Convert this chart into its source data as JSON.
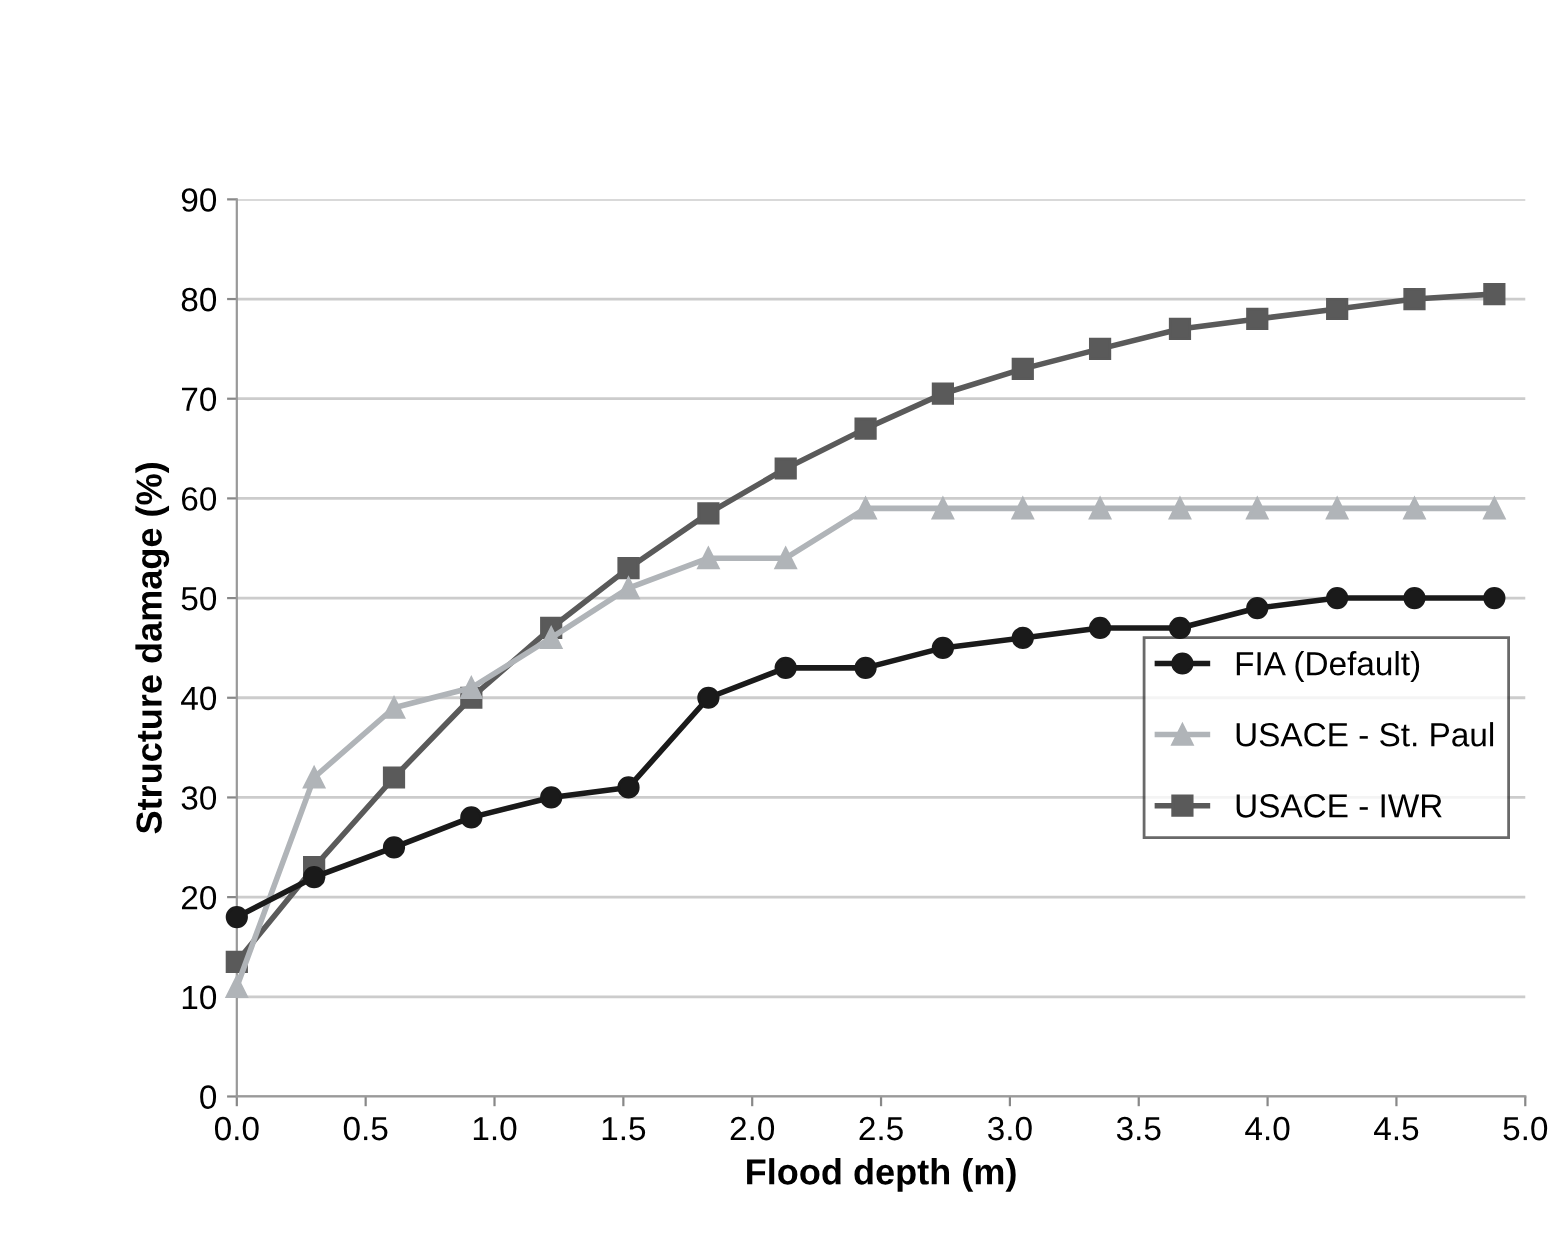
{
  "chart_data": {
    "type": "line",
    "xlabel": "Flood depth (m)",
    "ylabel": "Structure damage (%)",
    "x": [
      0,
      0.3,
      0.61,
      0.91,
      1.22,
      1.52,
      1.83,
      2.13,
      2.44,
      2.74,
      3.05,
      3.35,
      3.66,
      3.96,
      4.27,
      4.57,
      4.88
    ],
    "series": [
      {
        "name": "FIA (Default)",
        "color": "#1a1a1a",
        "marker": "circle",
        "values": [
          18,
          22,
          25,
          28,
          30,
          31,
          40,
          43,
          43,
          45,
          46,
          47,
          47,
          49,
          50,
          50,
          50
        ]
      },
      {
        "name": "USACE - St. Paul",
        "color": "#b0b4b8",
        "marker": "triangle",
        "values": [
          11,
          32,
          39,
          41,
          46,
          51,
          54,
          54,
          59,
          59,
          59,
          59,
          59,
          59,
          59,
          59,
          59
        ]
      },
      {
        "name": "USACE - IWR",
        "color": "#5a5a5a",
        "marker": "square",
        "values": [
          13.5,
          23,
          32,
          40,
          47,
          53,
          58.5,
          63,
          67,
          70.5,
          73,
          75,
          77,
          78,
          79,
          80,
          80.5
        ]
      }
    ],
    "xlim": [
      0,
      5
    ],
    "xticks": [
      {
        "value": 0,
        "label": "0.0"
      },
      0.5,
      {
        "value": 1,
        "label": "1.0"
      },
      1.5,
      {
        "value": 2,
        "label": "2.0"
      },
      2.5,
      {
        "value": 3,
        "label": "3.0"
      },
      3.5,
      {
        "value": 4,
        "label": "4.0"
      },
      4.5,
      {
        "value": 5,
        "label": "5.0"
      }
    ],
    "ylim": [
      0,
      90
    ],
    "yticks": [
      0,
      10,
      20,
      30,
      40,
      50,
      60,
      70,
      80,
      90
    ],
    "grid": "y",
    "legend": "right",
    "line_style": "solid"
  }
}
